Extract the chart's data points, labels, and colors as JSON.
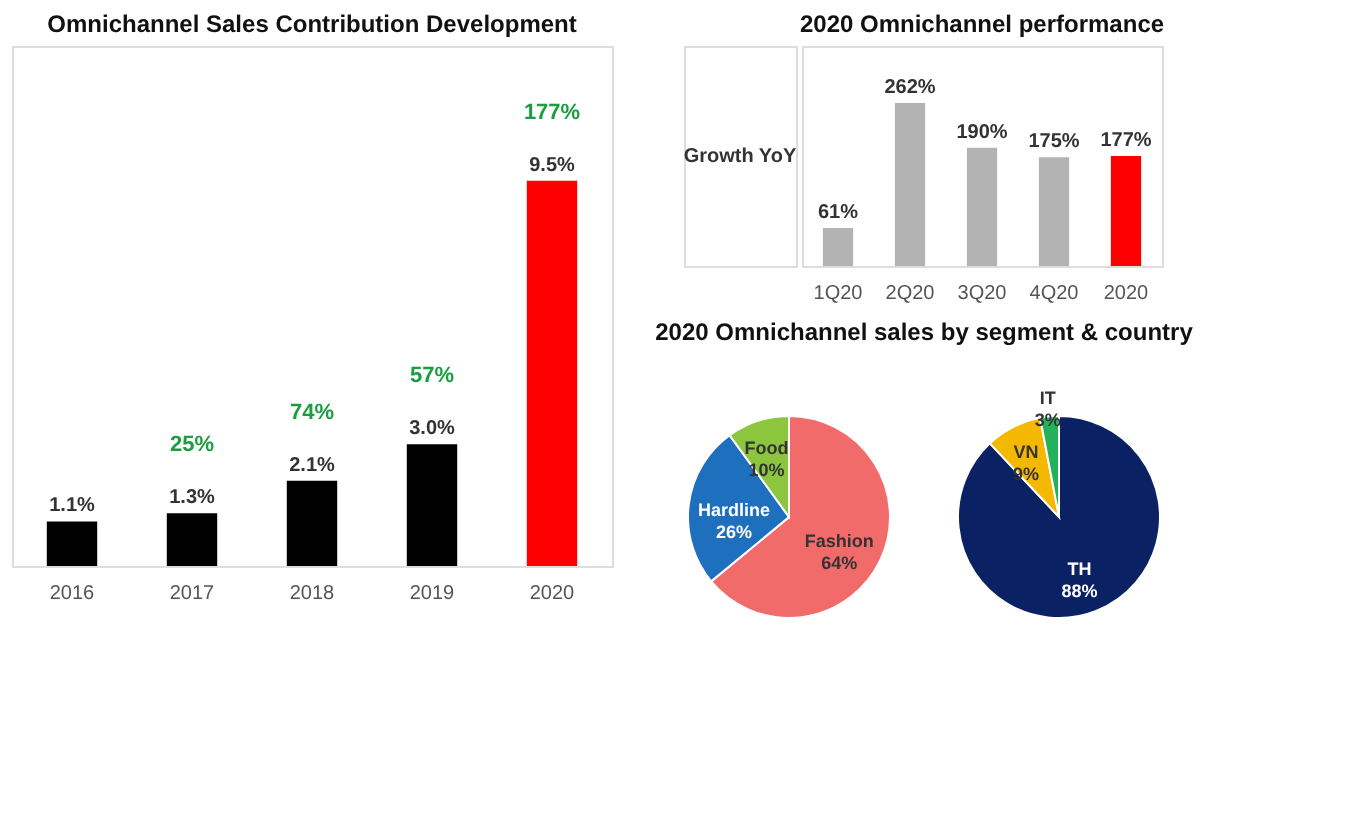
{
  "chart_data": [
    {
      "type": "bar",
      "title": "Omnichannel Sales Contribution Development",
      "categories": [
        "2016",
        "2017",
        "2018",
        "2019",
        "2020"
      ],
      "values": [
        1.1,
        1.3,
        2.1,
        3.0,
        9.5
      ],
      "value_labels": [
        "1.1%",
        "1.3%",
        "2.1%",
        "3.0%",
        "9.5%"
      ],
      "colors": [
        "#000000",
        "#000000",
        "#000000",
        "#000000",
        "#ff0000"
      ],
      "tick_labels": "x",
      "grid": false,
      "annotations": [
        "25%",
        "74%",
        "57%",
        "177%"
      ]
    },
    {
      "type": "bar",
      "title": "2020 Omnichannel performance",
      "categories": [
        "1Q20",
        "2Q20",
        "3Q20",
        "4Q20",
        "2020"
      ],
      "values": [
        61,
        262,
        190,
        175,
        177
      ],
      "value_labels": [
        "61%",
        "262%",
        "190%",
        "175%",
        "177%"
      ],
      "colors": [
        "#b3b3b3",
        "#b3b3b3",
        "#b3b3b3",
        "#b3b3b3",
        "#ff0000"
      ],
      "tick_labels": "x",
      "grid": false,
      "annotations": [
        "Growth YoY"
      ]
    },
    {
      "type": "pie",
      "title": "2020 Omnichannel sales by segment & country",
      "categories": [
        "Fashion",
        "Hardline",
        "Food"
      ],
      "values": [
        64,
        26,
        10
      ],
      "value_labels": [
        "64%",
        "26%",
        "10%"
      ],
      "colors": [
        "#f26b6b",
        "#1f6fbf",
        "#8cc63f"
      ]
    },
    {
      "type": "pie",
      "categories": [
        "TH",
        "VN",
        "IT"
      ],
      "values": [
        88,
        9,
        3
      ],
      "value_labels": [
        "88%",
        "9%",
        "3%"
      ],
      "colors": [
        "#0a2263",
        "#f5b800",
        "#22b35a"
      ]
    }
  ]
}
